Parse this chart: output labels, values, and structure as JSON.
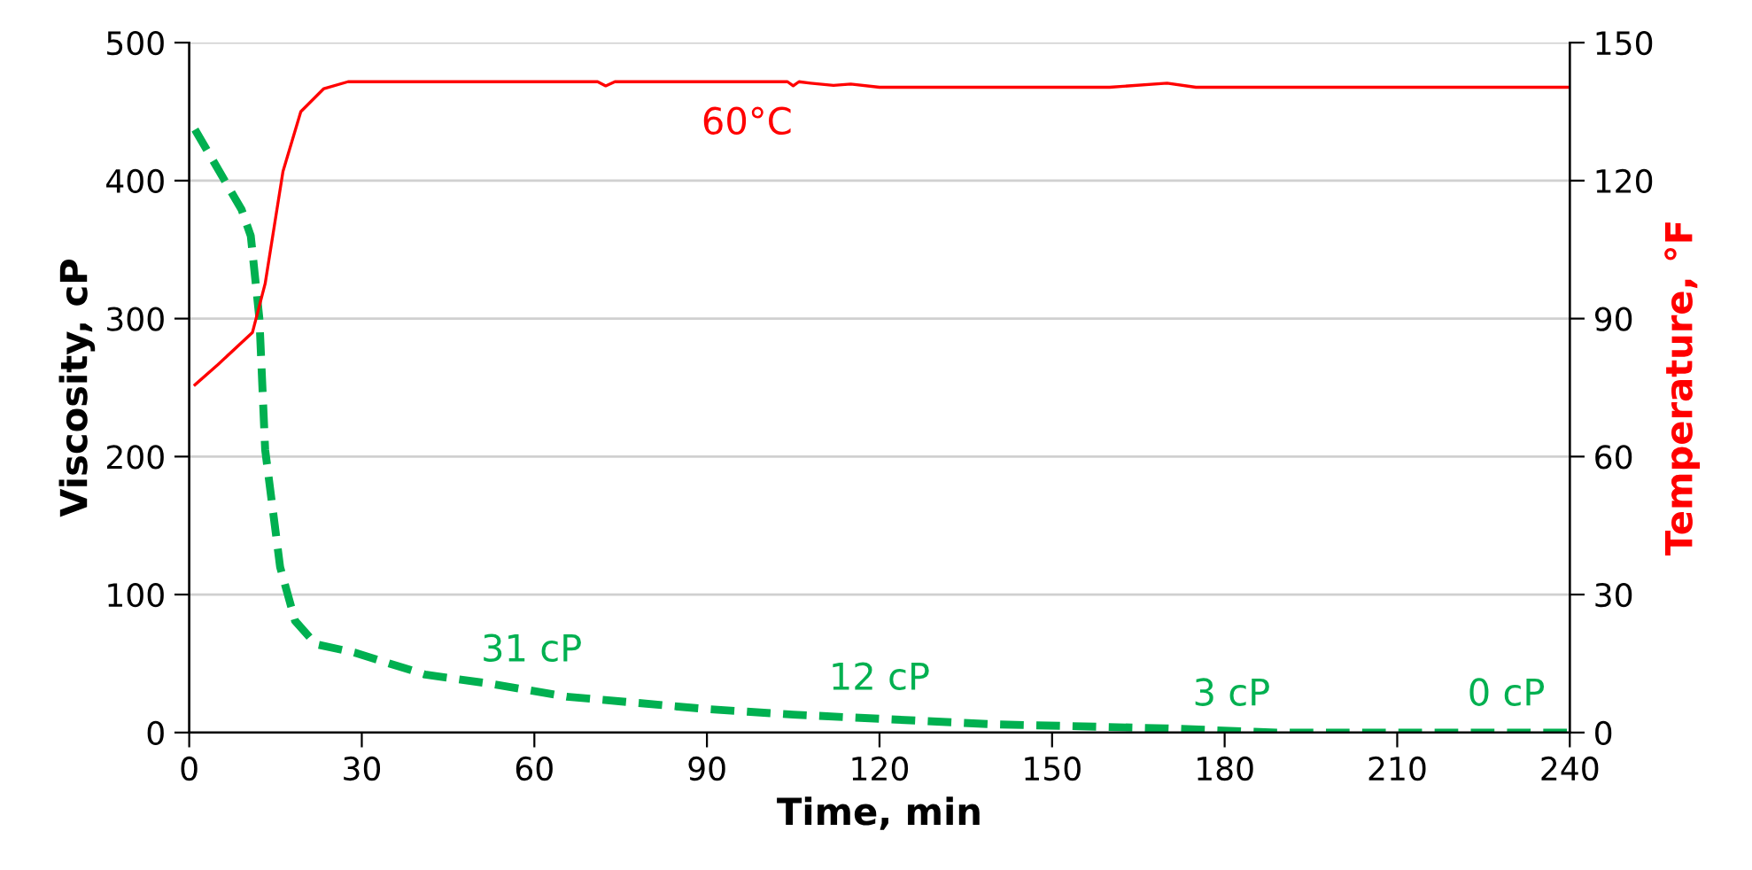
{
  "chart_data": {
    "type": "line",
    "xlabel": "Time, min",
    "ylabel": "Viscosity, cP",
    "y2label": "Temperature, °F",
    "xlim": [
      0,
      240
    ],
    "xticks": [
      0,
      30,
      60,
      90,
      120,
      150,
      180,
      210,
      240
    ],
    "ylim": [
      0,
      500
    ],
    "yticks": [
      0,
      100,
      200,
      300,
      400,
      500
    ],
    "y2lim": [
      0,
      150
    ],
    "y2ticks": [
      0,
      30,
      60,
      90,
      120,
      150
    ],
    "grid": "y",
    "legend": false,
    "marker": "none",
    "series": [
      {
        "color": "#00b050",
        "line_style": "dashed",
        "x": [
          1,
          9.1,
          10.7,
          12.2,
          13.2,
          15.8,
          18.4,
          22,
          28.7,
          41,
          53,
          65.6,
          90,
          105,
          139.5,
          170,
          189,
          240
        ],
        "values": [
          437,
          379,
          360,
          300,
          205,
          120,
          81,
          64,
          58,
          42,
          35,
          26,
          17,
          13,
          6,
          3,
          0,
          0
        ]
      },
      {
        "color": "#ff0000",
        "line_style": "solid",
        "axis": "y2",
        "x": [
          1,
          5,
          11,
          13.2,
          16.3,
          19.4,
          23.4,
          27.6,
          71,
          72.4,
          74,
          104,
          105,
          106,
          108,
          112,
          115,
          120,
          125,
          160,
          170,
          175,
          190,
          240
        ],
        "values": [
          75.6,
          80,
          87,
          97.6,
          122,
          135,
          140,
          141.5,
          141.5,
          140.6,
          141.5,
          141.5,
          140.6,
          141.5,
          141.2,
          140.7,
          141,
          140.3,
          140.3,
          140.3,
          141.2,
          140.3,
          140.3,
          140.3
        ]
      }
    ],
    "annotations": [
      "31 cP",
      "12 cP",
      "3 cP",
      "0 cP",
      "60°C"
    ]
  }
}
